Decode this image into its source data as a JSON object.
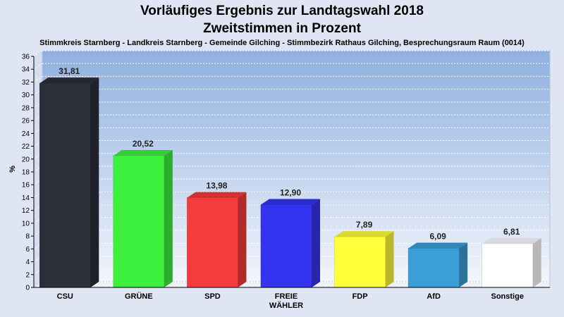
{
  "chart_data": {
    "type": "bar",
    "title": "Vorläufiges Ergebnis zur Landtagswahl 2018",
    "subtitle": "Zweitstimmen in Prozent",
    "caption": "Stimmkreis Starnberg - Landkreis Starnberg - Gemeinde Gilching - Stimmbezirk Rathaus Gilching, Besprechungsraum Raum  (0014)",
    "ylabel": "%",
    "xlabel": "",
    "ylim": [
      0,
      36
    ],
    "yticks": [
      0,
      2,
      4,
      6,
      8,
      10,
      12,
      14,
      16,
      18,
      20,
      22,
      24,
      26,
      28,
      30,
      32,
      34,
      36
    ],
    "grid": true,
    "categories": [
      "CSU",
      "GRÜNE",
      "SPD",
      "FREIE WÄHLER",
      "FDP",
      "AfD",
      "Sonstige"
    ],
    "category_lines": [
      [
        "CSU"
      ],
      [
        "GRÜNE"
      ],
      [
        "SPD"
      ],
      [
        "FREIE",
        "WÄHLER"
      ],
      [
        "FDP"
      ],
      [
        "AfD"
      ],
      [
        "Sonstige"
      ]
    ],
    "values": [
      31.81,
      20.52,
      13.98,
      12.9,
      7.89,
      6.09,
      6.81
    ],
    "value_labels": [
      "31,81",
      "20,52",
      "13,98",
      "12,90",
      "7,89",
      "6,09",
      "6,81"
    ],
    "colors": [
      "#2b2f3a",
      "#3ef03e",
      "#f53b3b",
      "#3434f0",
      "#ffff3a",
      "#3a9fd6",
      "#ffffff"
    ]
  }
}
